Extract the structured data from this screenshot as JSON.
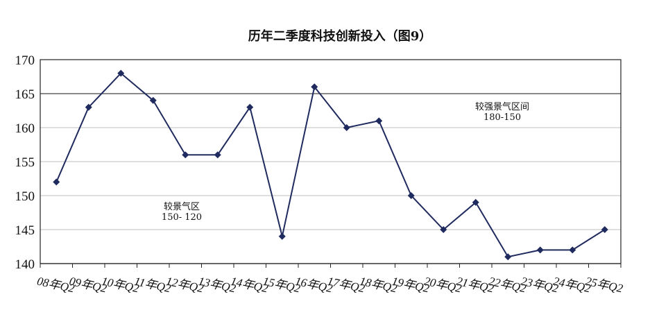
{
  "chart_data": {
    "type": "line",
    "title": "历年二季度科技创新投入（图9）",
    "xlabel": "",
    "ylabel": "",
    "categories": [
      "08年Q2",
      "09年Q2",
      "10年Q2",
      "11年Q2",
      "12年Q2",
      "13年Q2",
      "14年Q2",
      "15年Q2",
      "16年Q2",
      "17年Q2",
      "18年Q2",
      "19年Q2",
      "20年Q2",
      "21年Q2",
      "22年Q2",
      "23年Q2",
      "24年Q2",
      "25年Q2"
    ],
    "series": [
      {
        "values": [
          152,
          163,
          168,
          164,
          156,
          156,
          163,
          144,
          166,
          160,
          161,
          150,
          145,
          149,
          141,
          142,
          142,
          145
        ]
      }
    ],
    "ylim": [
      140,
      170
    ],
    "yticks": [
      140,
      145,
      150,
      155,
      160,
      165,
      170
    ],
    "reference_lines": [
      {
        "value": 165,
        "label": "较强景气区间\n180-150"
      },
      {
        "value": 140,
        "label": "较景气区\n150- 120"
      }
    ],
    "grid": true,
    "line_color": "#1f2a5e",
    "marker": "diamond"
  }
}
